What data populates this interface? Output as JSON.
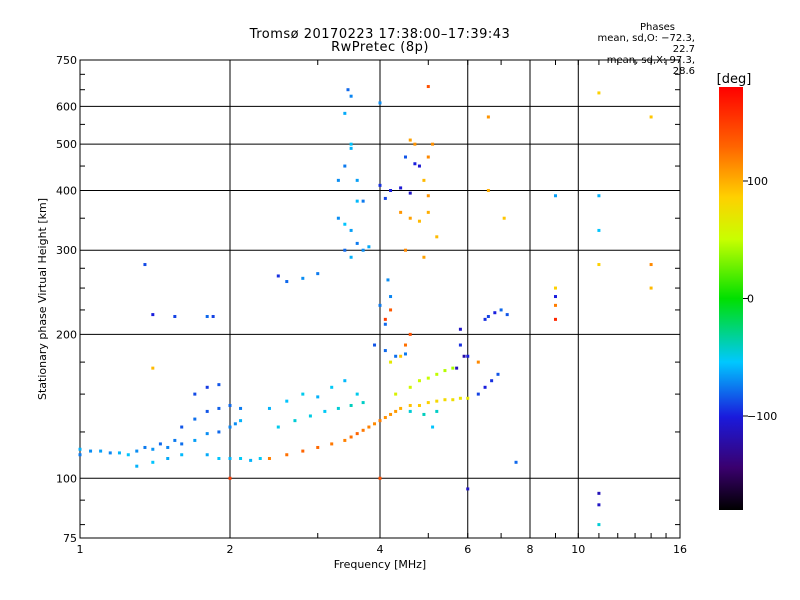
{
  "header": {
    "title_line1": "Tromsø 20170223 17:38:00–17:39:43",
    "title_line2": "RwPretec (8p)"
  },
  "phases_box": {
    "title": "Phases",
    "line_o": "mean, sd,O: −72.3, 22.7",
    "line_x": "mean, sd,X:  97.3, 28.6"
  },
  "chart_data": {
    "type": "scatter",
    "title": "Tromsø 20170223 17:38:00–17:39:43",
    "subtitle": "RwPretec (8p)",
    "xlabel": "Frequency [MHz]",
    "ylabel": "Stationary phase Virtual Height [km]",
    "x_scale": "log",
    "y_scale": "log",
    "xlim": [
      1,
      16
    ],
    "ylim": [
      75,
      750
    ],
    "x_ticks": [
      1,
      2,
      4,
      6,
      8,
      10,
      16
    ],
    "x_tick_labels": [
      "1",
      "2",
      "4",
      "6",
      "8",
      "10",
      "16"
    ],
    "y_ticks": [
      75,
      100,
      200,
      300,
      400,
      500,
      600,
      750
    ],
    "y_tick_labels": [
      "75",
      "100",
      "200",
      "300",
      "400",
      "500",
      "600",
      "750"
    ],
    "grid": true,
    "colorbar": {
      "unit": "[deg]",
      "range": [
        -180,
        180
      ],
      "ticks": [
        100,
        0,
        -100
      ],
      "tick_labels": [
        "100",
        "0",
        "−100"
      ]
    },
    "series": [
      {
        "points": [
          [
            1.0,
            115,
            -60
          ],
          [
            1.05,
            114,
            -70
          ],
          [
            1.1,
            114,
            -65
          ],
          [
            1.15,
            113,
            -72
          ],
          [
            1.2,
            113,
            -60
          ],
          [
            1.25,
            112,
            -55
          ],
          [
            1.3,
            114,
            -70
          ],
          [
            1.35,
            116,
            -75
          ],
          [
            1.4,
            115,
            -68
          ],
          [
            1.45,
            118,
            -80
          ],
          [
            1.5,
            116,
            -72
          ],
          [
            1.55,
            120,
            -75
          ],
          [
            1.6,
            118,
            -78
          ],
          [
            1.7,
            120,
            -65
          ],
          [
            1.8,
            124,
            -70
          ],
          [
            1.9,
            125,
            -80
          ],
          [
            2.0,
            128,
            -72
          ],
          [
            2.05,
            130,
            -70
          ],
          [
            2.1,
            132,
            -60
          ],
          [
            1.3,
            106,
            -60
          ],
          [
            1.4,
            108,
            -55
          ],
          [
            1.5,
            110,
            -62
          ],
          [
            1.6,
            112,
            -58
          ],
          [
            1.8,
            112,
            -62
          ],
          [
            1.9,
            110,
            -55
          ],
          [
            2.0,
            110,
            -58
          ],
          [
            2.1,
            110,
            -52
          ],
          [
            2.2,
            109,
            -60
          ],
          [
            2.3,
            110,
            -52
          ],
          [
            1.6,
            128,
            -85
          ],
          [
            1.7,
            133,
            -78
          ],
          [
            1.8,
            138,
            -85
          ],
          [
            1.9,
            140,
            -82
          ],
          [
            2.0,
            142,
            -80
          ],
          [
            2.1,
            140,
            -75
          ],
          [
            1.7,
            150,
            -88
          ],
          [
            1.8,
            155,
            -92
          ],
          [
            1.9,
            157,
            -85
          ],
          [
            1.4,
            220,
            -100
          ],
          [
            1.55,
            218,
            -90
          ],
          [
            1.8,
            218,
            -80
          ],
          [
            1.85,
            218,
            -90
          ],
          [
            1.35,
            280,
            -88
          ],
          [
            2.6,
            258,
            -80
          ],
          [
            2.8,
            262,
            -70
          ],
          [
            3.0,
            268,
            -75
          ],
          [
            2.5,
            265,
            -95
          ],
          [
            3.3,
            350,
            -70
          ],
          [
            3.4,
            340,
            -55
          ],
          [
            3.5,
            330,
            -65
          ],
          [
            3.4,
            300,
            -80
          ],
          [
            3.5,
            290,
            -60
          ],
          [
            3.6,
            310,
            -75
          ],
          [
            3.7,
            300,
            -70
          ],
          [
            3.8,
            305,
            -62
          ],
          [
            3.3,
            420,
            -70
          ],
          [
            3.4,
            450,
            -75
          ],
          [
            3.5,
            490,
            -60
          ],
          [
            3.5,
            500,
            -55
          ],
          [
            3.4,
            580,
            -62
          ],
          [
            3.5,
            630,
            -72
          ],
          [
            3.45,
            650,
            -80
          ],
          [
            3.6,
            420,
            -65
          ],
          [
            3.7,
            380,
            -75
          ],
          [
            3.6,
            380,
            -58
          ],
          [
            4.0,
            410,
            -95
          ],
          [
            4.2,
            400,
            -100
          ],
          [
            4.4,
            405,
            -105
          ],
          [
            4.6,
            395,
            -110
          ],
          [
            4.1,
            385,
            -90
          ],
          [
            4.0,
            230,
            -75
          ],
          [
            4.1,
            210,
            -80
          ],
          [
            4.2,
            240,
            -72
          ],
          [
            4.15,
            260,
            -70
          ],
          [
            4.0,
            610,
            -70
          ],
          [
            4.5,
            470,
            -85
          ],
          [
            4.7,
            455,
            -100
          ],
          [
            4.8,
            450,
            -105
          ],
          [
            6.6,
            218,
            -90
          ],
          [
            6.8,
            222,
            -100
          ],
          [
            7.0,
            225,
            -80
          ],
          [
            6.5,
            215,
            -95
          ],
          [
            7.2,
            220,
            -85
          ],
          [
            2.4,
            140,
            -60
          ],
          [
            2.6,
            145,
            -55
          ],
          [
            2.8,
            150,
            -50
          ],
          [
            3.0,
            148,
            -60
          ],
          [
            3.2,
            155,
            -52
          ],
          [
            3.4,
            160,
            -58
          ],
          [
            3.6,
            150,
            -50
          ],
          [
            2.5,
            128,
            -50
          ],
          [
            2.7,
            132,
            -45
          ],
          [
            2.9,
            135,
            -48
          ],
          [
            3.1,
            138,
            -52
          ],
          [
            3.3,
            140,
            -45
          ],
          [
            3.5,
            142,
            -40
          ],
          [
            3.7,
            144,
            -42
          ],
          [
            4.6,
            138,
            -45
          ],
          [
            4.9,
            136,
            -40
          ],
          [
            5.2,
            138,
            -42
          ],
          [
            6.3,
            150,
            -90
          ],
          [
            6.5,
            155,
            -100
          ],
          [
            6.7,
            160,
            -95
          ],
          [
            6.9,
            165,
            -85
          ],
          [
            5.8,
            190,
            -95
          ],
          [
            6.0,
            180,
            -100
          ],
          [
            3.9,
            190,
            -85
          ],
          [
            4.1,
            185,
            -80
          ],
          [
            4.3,
            180,
            -78
          ],
          [
            4.5,
            182,
            -75
          ],
          [
            9.0,
            390,
            -65
          ],
          [
            11.0,
            390,
            -60
          ],
          [
            11.0,
            330,
            -55
          ],
          [
            7.5,
            108,
            -80
          ],
          [
            5.1,
            128,
            -55
          ],
          [
            1.0,
            112,
            -75
          ],
          [
            11.0,
            80,
            -45
          ],
          [
            11.0,
            88,
            -110
          ],
          [
            6.0,
            95,
            -110
          ],
          [
            11.0,
            93,
            -115
          ],
          [
            9.0,
            240,
            -100
          ],
          [
            5.8,
            205,
            -110
          ],
          [
            5.9,
            180,
            -120
          ],
          [
            5.7,
            170,
            -115
          ]
        ]
      },
      {
        "points": [
          [
            2.4,
            110,
            120
          ],
          [
            2.6,
            112,
            125
          ],
          [
            2.8,
            114,
            130
          ],
          [
            3.0,
            116,
            128
          ],
          [
            3.2,
            118,
            122
          ],
          [
            3.4,
            120,
            118
          ],
          [
            3.5,
            122,
            125
          ],
          [
            3.6,
            124,
            130
          ],
          [
            3.7,
            126,
            122
          ],
          [
            3.8,
            128,
            118
          ],
          [
            3.9,
            130,
            115
          ],
          [
            4.0,
            132,
            120
          ],
          [
            4.1,
            134,
            112
          ],
          [
            4.2,
            136,
            110
          ],
          [
            4.3,
            138,
            108
          ],
          [
            4.4,
            140,
            100
          ],
          [
            4.6,
            142,
            92
          ],
          [
            4.8,
            142,
            88
          ],
          [
            5.0,
            144,
            85
          ],
          [
            5.2,
            145,
            80
          ],
          [
            5.4,
            146,
            78
          ],
          [
            5.6,
            146,
            75
          ],
          [
            5.8,
            147,
            72
          ],
          [
            6.0,
            147,
            70
          ],
          [
            4.3,
            150,
            60
          ],
          [
            4.6,
            155,
            55
          ],
          [
            4.8,
            160,
            52
          ],
          [
            5.0,
            162,
            50
          ],
          [
            5.2,
            165,
            48
          ],
          [
            5.4,
            168,
            45
          ],
          [
            5.6,
            170,
            42
          ],
          [
            4.2,
            175,
            68
          ],
          [
            4.4,
            180,
            90
          ],
          [
            4.5,
            190,
            125
          ],
          [
            4.6,
            200,
            140
          ],
          [
            4.4,
            360,
            110
          ],
          [
            4.6,
            350,
            105
          ],
          [
            4.8,
            345,
            95
          ],
          [
            5.0,
            360,
            100
          ],
          [
            4.5,
            300,
            115
          ],
          [
            4.9,
            420,
            95
          ],
          [
            5.0,
            390,
            110
          ],
          [
            5.0,
            470,
            115
          ],
          [
            5.1,
            500,
            112
          ],
          [
            4.6,
            510,
            105
          ],
          [
            4.7,
            500,
            110
          ],
          [
            5.0,
            660,
            140
          ],
          [
            6.6,
            570,
            110
          ],
          [
            6.6,
            400,
            100
          ],
          [
            7.1,
            350,
            90
          ],
          [
            5.2,
            320,
            95
          ],
          [
            4.9,
            290,
            105
          ],
          [
            11.0,
            280,
            85
          ],
          [
            14.0,
            280,
            115
          ],
          [
            14.0,
            250,
            95
          ],
          [
            14.0,
            570,
            90
          ],
          [
            11.0,
            640,
            85
          ],
          [
            9.0,
            250,
            85
          ],
          [
            9.0,
            230,
            120
          ],
          [
            9.0,
            215,
            160
          ],
          [
            4.0,
            100,
            140
          ],
          [
            2.0,
            100,
            150
          ],
          [
            4.1,
            215,
            150
          ],
          [
            4.2,
            225,
            135
          ],
          [
            6.3,
            175,
            115
          ],
          [
            1.4,
            170,
            95
          ]
        ]
      }
    ]
  }
}
